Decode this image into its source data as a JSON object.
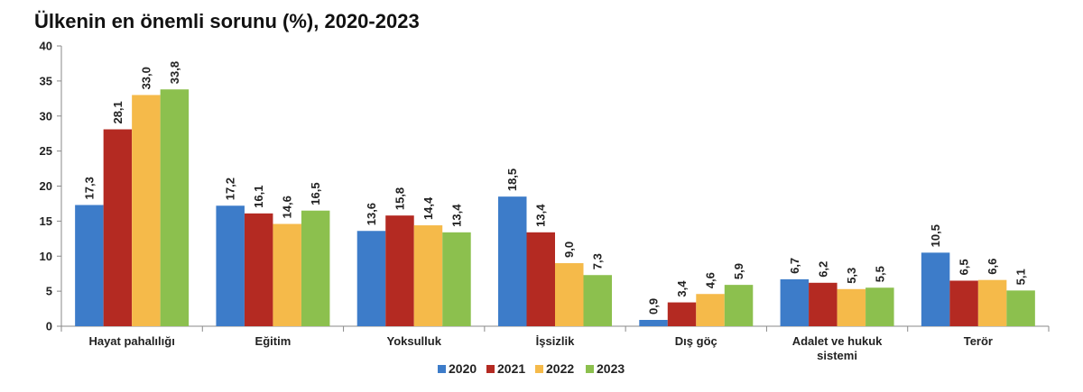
{
  "title": "Ülkenin en önemli sorunu (%), 2020-2023",
  "chart_data": {
    "type": "bar",
    "title": "Ülkenin en önemli sorunu (%), 2020-2023",
    "xlabel": "",
    "ylabel": "",
    "ylim": [
      0,
      40
    ],
    "yticks": [
      0,
      5,
      10,
      15,
      20,
      25,
      30,
      35,
      40
    ],
    "grid": false,
    "legend_position": "bottom",
    "categories": [
      [
        "Hayat pahalılığı"
      ],
      [
        "Eğitim"
      ],
      [
        "Yoksulluk"
      ],
      [
        "İşsizlik"
      ],
      [
        "Dış göç"
      ],
      [
        "Adalet ve hukuk",
        "sistemi"
      ],
      [
        "Terör"
      ]
    ],
    "series": [
      {
        "name": "2020",
        "color": "#3d7cc9",
        "values": [
          17.3,
          17.2,
          13.6,
          18.5,
          0.9,
          6.7,
          10.5
        ],
        "labels": [
          "17,3",
          "17,2",
          "13,6",
          "18,5",
          "0,9",
          "6,7",
          "10,5"
        ]
      },
      {
        "name": "2021",
        "color": "#b42a22",
        "values": [
          28.1,
          16.1,
          15.8,
          13.4,
          3.4,
          6.2,
          6.5
        ],
        "labels": [
          "28,1",
          "16,1",
          "15,8",
          "13,4",
          "3,4",
          "6,2",
          "6,5"
        ]
      },
      {
        "name": "2022",
        "color": "#f5ba4a",
        "values": [
          33.0,
          14.6,
          14.4,
          9.0,
          4.6,
          5.3,
          6.6
        ],
        "labels": [
          "33,0",
          "14,6",
          "14,4",
          "9,0",
          "4,6",
          "5,3",
          "6,6"
        ]
      },
      {
        "name": "2023",
        "color": "#8cc04e",
        "values": [
          33.8,
          16.5,
          13.4,
          7.3,
          5.9,
          5.5,
          5.1
        ],
        "labels": [
          "33,8",
          "16,5",
          "13,4",
          "7,3",
          "5,9",
          "5,5",
          "5,1"
        ]
      }
    ]
  }
}
